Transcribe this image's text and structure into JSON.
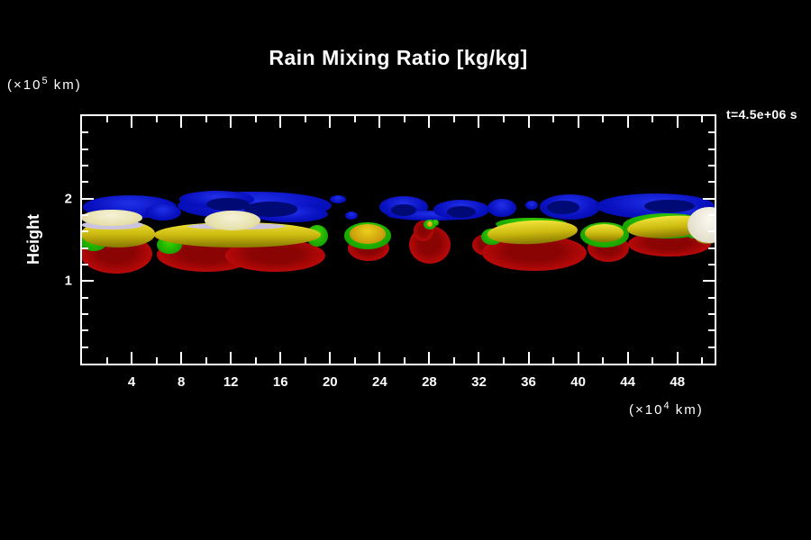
{
  "title": "Rain Mixing Ratio [kg/kg]",
  "annotation": "t=4.5e+06 s",
  "colors": {
    "background": "#000000",
    "foreground": "#ffffff"
  },
  "chart_data": {
    "type": "heatmap",
    "subtype": "filled-contour-blobs",
    "title": "Rain Mixing Ratio [kg/kg]",
    "time_label": "t=4.5e+06 s",
    "xlabel_unit": {
      "prefix": "(×10",
      "exp": "4",
      "suffix": " km)"
    },
    "ylabel": "Height",
    "ylabel_unit": {
      "prefix": "(×10",
      "exp": "5",
      "suffix": " km)"
    },
    "xlim": [
      0,
      51
    ],
    "ylim": [
      0,
      3
    ],
    "grid": false,
    "legend": "none",
    "x_axis": {
      "major_ticks": [
        {
          "value": 4,
          "label": "4"
        },
        {
          "value": 8,
          "label": "8"
        },
        {
          "value": 12,
          "label": "12"
        },
        {
          "value": 16,
          "label": "16"
        },
        {
          "value": 20,
          "label": "20"
        },
        {
          "value": 24,
          "label": "24"
        },
        {
          "value": 28,
          "label": "28"
        },
        {
          "value": 32,
          "label": "32"
        },
        {
          "value": 36,
          "label": "36"
        },
        {
          "value": 40,
          "label": "40"
        },
        {
          "value": 44,
          "label": "44"
        },
        {
          "value": 48,
          "label": "48"
        }
      ],
      "minor_ticks": [
        2,
        6,
        10,
        14,
        18,
        22,
        26,
        30,
        34,
        38,
        42,
        46,
        50
      ]
    },
    "y_axis": {
      "label": "Height",
      "major_ticks": [
        {
          "value": 1,
          "label": "1"
        },
        {
          "value": 2,
          "label": "2"
        }
      ],
      "minor_ticks": [
        0.2,
        0.4,
        0.6,
        0.8,
        1.2,
        1.4,
        1.6,
        1.8,
        2.2,
        2.4,
        2.6,
        2.8
      ]
    },
    "levels": [
      {
        "name": "blue",
        "type": "radial",
        "stops": [
          "#2030e8",
          "#0a12c2",
          "#0008a4"
        ]
      },
      {
        "name": "navy",
        "type": "flat",
        "stops": [
          "#000a74"
        ]
      },
      {
        "name": "red",
        "type": "radial-core",
        "stops": [
          "#8a0404",
          "#b50808",
          "#da1111"
        ]
      },
      {
        "name": "green",
        "type": "radial",
        "stops": [
          "#3ed400",
          "#1fae00",
          "#0f9200"
        ]
      },
      {
        "name": "amber",
        "type": "radial",
        "stops": [
          "#ecd11c",
          "#d2a60e",
          "#b88406"
        ]
      },
      {
        "name": "yellow",
        "type": "linear",
        "stops": [
          "#f0e43a",
          "#cdbb10",
          "#877700"
        ]
      },
      {
        "name": "lavender",
        "type": "flat",
        "stops": [
          "#ccc4de"
        ]
      },
      {
        "name": "cream",
        "type": "radial",
        "stops": [
          "#f5f2d8",
          "#e9e3b2",
          "#d6cf8e"
        ]
      },
      {
        "name": "white",
        "type": "radial",
        "stops": [
          "#faf9f2",
          "#e8e4d2",
          "#d4cfb8"
        ]
      }
    ],
    "blobs": [
      {
        "level": "blue",
        "x": 3.84,
        "y": 1.9,
        "rx": 3.77,
        "ry": 0.14
      },
      {
        "level": "blue",
        "x": 6.52,
        "y": 1.83,
        "rx": 1.45,
        "ry": 0.1
      },
      {
        "level": "blue",
        "x": 13.91,
        "y": 1.91,
        "rx": 6.23,
        "ry": 0.17
      },
      {
        "level": "blue",
        "x": 10.87,
        "y": 1.99,
        "rx": 3.04,
        "ry": 0.1
      },
      {
        "level": "blue",
        "x": 16.81,
        "y": 1.81,
        "rx": 3.04,
        "ry": 0.1
      },
      {
        "level": "blue",
        "x": 20.65,
        "y": 1.99,
        "rx": 0.65,
        "ry": 0.05
      },
      {
        "level": "blue",
        "x": 21.74,
        "y": 1.79,
        "rx": 0.51,
        "ry": 0.05
      },
      {
        "level": "blue",
        "x": 25.94,
        "y": 1.9,
        "rx": 1.96,
        "ry": 0.13
      },
      {
        "level": "blue",
        "x": 28.26,
        "y": 1.79,
        "rx": 3.62,
        "ry": 0.06
      },
      {
        "level": "blue",
        "x": 30.58,
        "y": 1.87,
        "rx": 2.25,
        "ry": 0.12
      },
      {
        "level": "blue",
        "x": 33.84,
        "y": 1.89,
        "rx": 1.16,
        "ry": 0.11
      },
      {
        "level": "blue",
        "x": 36.23,
        "y": 1.92,
        "rx": 0.51,
        "ry": 0.05
      },
      {
        "level": "blue",
        "x": 39.35,
        "y": 1.9,
        "rx": 2.46,
        "ry": 0.15
      },
      {
        "level": "blue",
        "x": 46.23,
        "y": 1.91,
        "rx": 4.78,
        "ry": 0.15
      },
      {
        "level": "blue",
        "x": 48.7,
        "y": 1.83,
        "rx": 1.59,
        "ry": 0.11
      },
      {
        "level": "navy",
        "x": 15.22,
        "y": 1.87,
        "rx": 2.17,
        "ry": 0.09
      },
      {
        "level": "navy",
        "x": 11.74,
        "y": 1.93,
        "rx": 1.74,
        "ry": 0.08
      },
      {
        "level": "navy",
        "x": 38.77,
        "y": 1.89,
        "rx": 1.3,
        "ry": 0.08
      },
      {
        "level": "navy",
        "x": 47.39,
        "y": 1.91,
        "rx": 2.03,
        "ry": 0.08
      },
      {
        "level": "navy",
        "x": 25.94,
        "y": 1.86,
        "rx": 1.01,
        "ry": 0.07
      },
      {
        "level": "navy",
        "x": 30.58,
        "y": 1.84,
        "rx": 1.16,
        "ry": 0.07
      },
      {
        "level": "red",
        "x": 2.75,
        "y": 1.33,
        "rx": 2.9,
        "ry": 0.24
      },
      {
        "level": "red",
        "x": 10.0,
        "y": 1.32,
        "rx": 3.99,
        "ry": 0.21
      },
      {
        "level": "red",
        "x": 15.58,
        "y": 1.31,
        "rx": 4.06,
        "ry": 0.2
      },
      {
        "level": "red",
        "x": 23.12,
        "y": 1.4,
        "rx": 1.67,
        "ry": 0.16
      },
      {
        "level": "red",
        "x": 28.04,
        "y": 1.44,
        "rx": 1.67,
        "ry": 0.23
      },
      {
        "level": "red",
        "x": 27.54,
        "y": 1.61,
        "rx": 0.8,
        "ry": 0.13
      },
      {
        "level": "red",
        "x": 32.61,
        "y": 1.44,
        "rx": 1.16,
        "ry": 0.13
      },
      {
        "level": "red",
        "x": 36.45,
        "y": 1.34,
        "rx": 4.2,
        "ry": 0.22
      },
      {
        "level": "red",
        "x": 42.46,
        "y": 1.4,
        "rx": 1.67,
        "ry": 0.17
      },
      {
        "level": "red",
        "x": 47.39,
        "y": 1.45,
        "rx": 3.33,
        "ry": 0.15
      },
      {
        "level": "green",
        "x": 0.94,
        "y": 1.5,
        "rx": 1.16,
        "ry": 0.14
      },
      {
        "level": "green",
        "x": 7.03,
        "y": 1.44,
        "rx": 1.01,
        "ry": 0.11
      },
      {
        "level": "green",
        "x": 18.99,
        "y": 1.55,
        "rx": 0.87,
        "ry": 0.13
      },
      {
        "level": "green",
        "x": 23.04,
        "y": 1.55,
        "rx": 1.88,
        "ry": 0.16
      },
      {
        "level": "green",
        "x": 28.04,
        "y": 1.69,
        "rx": 0.51,
        "ry": 0.06
      },
      {
        "level": "green",
        "x": 28.48,
        "y": 1.71,
        "rx": 0.29,
        "ry": 0.04
      },
      {
        "level": "green",
        "x": 33.04,
        "y": 1.54,
        "rx": 0.87,
        "ry": 0.1
      },
      {
        "level": "green",
        "x": 36.23,
        "y": 1.69,
        "rx": 2.9,
        "ry": 0.08
      },
      {
        "level": "green",
        "x": 42.17,
        "y": 1.56,
        "rx": 1.96,
        "ry": 0.15
      },
      {
        "level": "green",
        "x": 47.17,
        "y": 1.67,
        "rx": 3.55,
        "ry": 0.15
      },
      {
        "level": "green",
        "x": 49.28,
        "y": 1.63,
        "rx": 0.58,
        "ry": 0.11
      },
      {
        "level": "amber",
        "x": 23.04,
        "y": 1.57,
        "rx": 1.45,
        "ry": 0.12
      },
      {
        "level": "amber",
        "x": 28.04,
        "y": 1.69,
        "rx": 0.25,
        "ry": 0.03
      },
      {
        "level": "yellow",
        "x": 2.9,
        "y": 1.57,
        "rx": 2.97,
        "ry": 0.16
      },
      {
        "level": "yellow",
        "x": 12.54,
        "y": 1.56,
        "rx": 6.74,
        "ry": 0.15
      },
      {
        "level": "yellow",
        "x": 36.3,
        "y": 1.59,
        "rx": 3.62,
        "ry": 0.14,
        "rot": -3
      },
      {
        "level": "yellow",
        "x": 42.1,
        "y": 1.58,
        "rx": 1.59,
        "ry": 0.11
      },
      {
        "level": "yellow",
        "x": 47.25,
        "y": 1.66,
        "rx": 3.33,
        "ry": 0.13,
        "rot": -4
      },
      {
        "level": "yellow",
        "x": 50.43,
        "y": 1.54,
        "rx": 1.01,
        "ry": 0.09
      },
      {
        "level": "lavender",
        "x": 2.46,
        "y": 1.68,
        "rx": 2.46,
        "ry": 0.05
      },
      {
        "level": "lavender",
        "x": 12.46,
        "y": 1.66,
        "rx": 3.99,
        "ry": 0.04
      },
      {
        "level": "cream",
        "x": 2.39,
        "y": 1.77,
        "rx": 2.46,
        "ry": 0.1
      },
      {
        "level": "cream",
        "x": 12.1,
        "y": 1.74,
        "rx": 2.25,
        "ry": 0.12
      },
      {
        "level": "white",
        "x": 50.58,
        "y": 1.68,
        "rx": 1.74,
        "ry": 0.22
      }
    ]
  }
}
